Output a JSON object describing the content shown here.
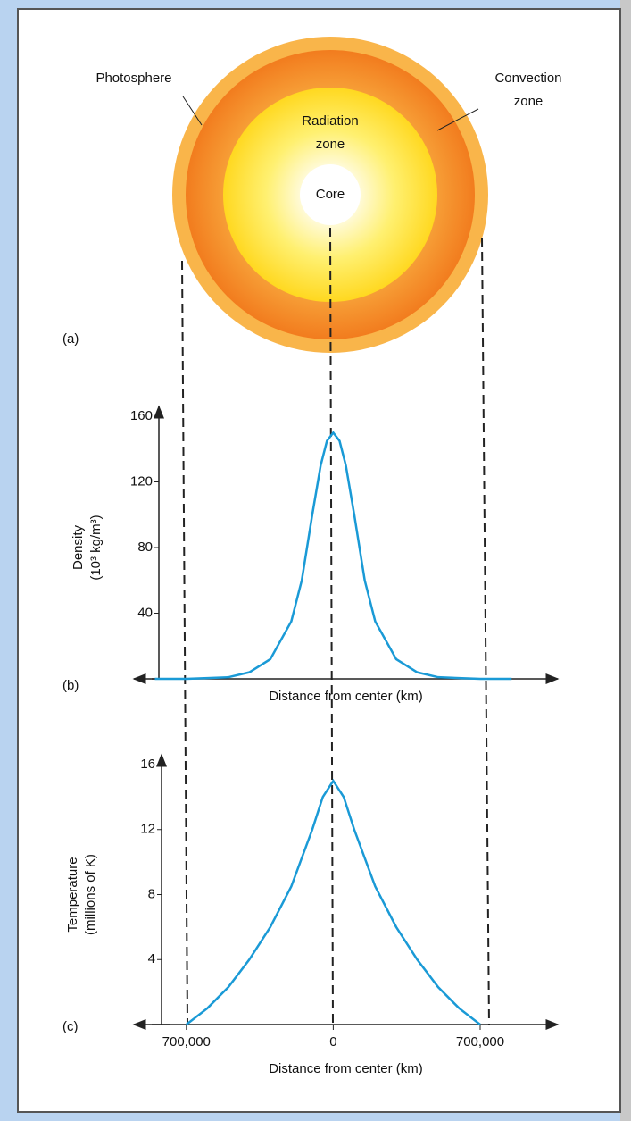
{
  "diagram": {
    "labels": {
      "photosphere": "Photosphere",
      "convection_line1": "Convection",
      "convection_line2": "zone",
      "radiation_line1": "Radiation",
      "radiation_line2": "zone",
      "core": "Core"
    },
    "panel_a": "(a)",
    "panel_b": "(b)",
    "panel_c": "(c)"
  },
  "chart_data": [
    {
      "type": "line",
      "ylabel_line1": "Density",
      "ylabel_line2": "(10³ kg/m³)",
      "xlabel": "Distance from center (km)",
      "color": "#1a9ad6",
      "x": [
        -850000,
        -700000,
        -600000,
        -500000,
        -400000,
        -300000,
        -200000,
        -150000,
        -100000,
        -60000,
        -30000,
        0,
        30000,
        60000,
        100000,
        150000,
        200000,
        300000,
        400000,
        500000,
        600000,
        700000,
        850000
      ],
      "values": [
        0,
        0,
        0.5,
        1,
        4,
        12,
        35,
        60,
        100,
        130,
        145,
        150,
        145,
        130,
        100,
        60,
        35,
        12,
        4,
        1,
        0.5,
        0,
        0
      ],
      "xlim": [
        -950000,
        1070000
      ],
      "ylim": [
        0,
        160
      ],
      "yticks": [
        40,
        80,
        120,
        160
      ]
    },
    {
      "type": "line",
      "ylabel_line1": "Temperature",
      "ylabel_line2": "(millions of K)",
      "xlabel": "Distance from center (km)",
      "color": "#1a9ad6",
      "x": [
        -700000,
        -600000,
        -500000,
        -400000,
        -300000,
        -200000,
        -100000,
        -50000,
        0,
        50000,
        100000,
        200000,
        300000,
        400000,
        500000,
        600000,
        700000
      ],
      "values": [
        0,
        1,
        2.3,
        4,
        6,
        8.5,
        12,
        14,
        15,
        14,
        12,
        8.5,
        6,
        4,
        2.3,
        1,
        0
      ],
      "xlim": [
        -950000,
        1070000
      ],
      "ylim": [
        0,
        16
      ],
      "yticks": [
        4,
        8,
        12,
        16
      ],
      "xticks": [
        {
          "value": -700000,
          "label": "700,000"
        },
        0,
        {
          "value": 700000,
          "label": "700,000"
        }
      ]
    }
  ]
}
